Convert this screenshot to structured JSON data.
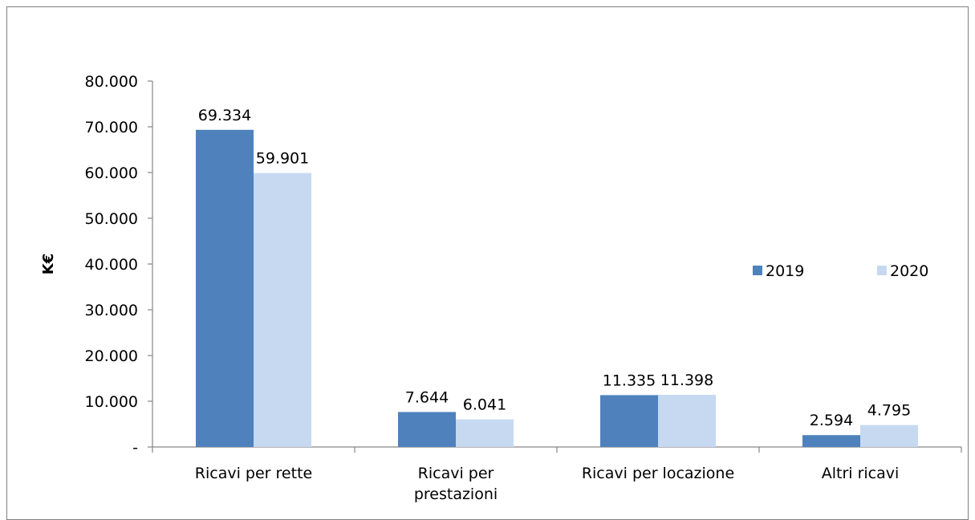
{
  "chart_data": {
    "type": "bar",
    "title": "",
    "xlabel": "",
    "ylabel": "K€",
    "ylim": [
      0,
      80000
    ],
    "y_ticks": [
      {
        "value": 0,
        "label": "-"
      },
      {
        "value": 10000,
        "label": "10.000"
      },
      {
        "value": 20000,
        "label": "20.000"
      },
      {
        "value": 30000,
        "label": "30.000"
      },
      {
        "value": 40000,
        "label": "40.000"
      },
      {
        "value": 50000,
        "label": "50.000"
      },
      {
        "value": 60000,
        "label": "60.000"
      },
      {
        "value": 70000,
        "label": "70.000"
      },
      {
        "value": 80000,
        "label": "80.000"
      }
    ],
    "categories": [
      [
        "Ricavi per rette"
      ],
      [
        "Ricavi per",
        "prestazioni"
      ],
      [
        "Ricavi per locazione"
      ],
      [
        "Altri ricavi"
      ]
    ],
    "series": [
      {
        "name": "2019",
        "color": "#4f81bd",
        "values": [
          69334,
          7644,
          11335,
          2594
        ],
        "labels": [
          "69.334",
          "7.644",
          "11.335",
          "2.594"
        ]
      },
      {
        "name": "2020",
        "color": "#c6d9f1",
        "values": [
          59901,
          6041,
          11398,
          4795
        ],
        "labels": [
          "59.901",
          "6.041",
          "11.398",
          "4.795"
        ]
      }
    ],
    "legend_position": "right",
    "grid": false
  }
}
